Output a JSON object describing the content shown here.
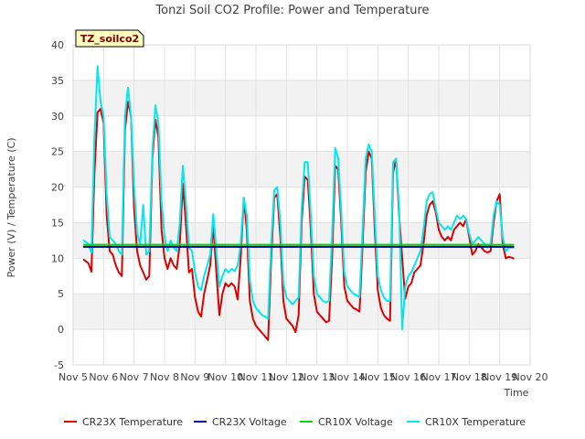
{
  "chart_data": {
    "type": "line",
    "title": "Tonzi Soil CO2 Profile: Power and Temperature",
    "xlabel": "Time",
    "ylabel": "Power (V) / Temperature (C)",
    "badge": "TZ_soilco2",
    "xlim": [
      5,
      20
    ],
    "ylim": [
      -5,
      40
    ],
    "xticks": [
      5,
      6,
      7,
      8,
      9,
      10,
      11,
      12,
      13,
      14,
      15,
      16,
      17,
      18,
      19,
      20
    ],
    "xtick_labels": [
      "Nov 5",
      "Nov 6",
      "Nov 7",
      "Nov 8",
      "Nov 9",
      "Nov 10",
      "Nov 11",
      "Nov 12",
      "Nov 13",
      "Nov 14",
      "Nov 15",
      "Nov 16",
      "Nov 17",
      "Nov 18",
      "Nov 19",
      "Nov 20"
    ],
    "yticks": [
      -5,
      0,
      5,
      10,
      15,
      20,
      25,
      30,
      35,
      40
    ],
    "ytick_labels": [
      "-5",
      "0",
      "5",
      "10",
      "15",
      "20",
      "25",
      "30",
      "35",
      "40"
    ],
    "grid": true,
    "legend_position": "bottom",
    "series": [
      {
        "name": "CR23X Temperature",
        "color": "#dd0000",
        "x": [
          5.35,
          5.5,
          5.6,
          5.7,
          5.8,
          5.9,
          6.0,
          6.1,
          6.2,
          6.3,
          6.4,
          6.5,
          6.6,
          6.7,
          6.8,
          6.9,
          7.0,
          7.1,
          7.2,
          7.3,
          7.4,
          7.5,
          7.6,
          7.7,
          7.8,
          7.9,
          8.0,
          8.1,
          8.2,
          8.3,
          8.4,
          8.5,
          8.6,
          8.7,
          8.8,
          8.9,
          9.0,
          9.1,
          9.2,
          9.3,
          9.4,
          9.5,
          9.6,
          9.7,
          9.8,
          9.9,
          10.0,
          10.1,
          10.2,
          10.3,
          10.4,
          10.5,
          10.6,
          10.7,
          10.8,
          10.9,
          11.0,
          11.1,
          11.2,
          11.3,
          11.4,
          11.5,
          11.6,
          11.7,
          11.8,
          11.9,
          12.0,
          12.1,
          12.2,
          12.3,
          12.4,
          12.5,
          12.6,
          12.7,
          12.8,
          12.9,
          13.0,
          13.1,
          13.2,
          13.3,
          13.4,
          13.5,
          13.6,
          13.7,
          13.8,
          13.9,
          14.0,
          14.1,
          14.2,
          14.3,
          14.4,
          14.5,
          14.6,
          14.7,
          14.8,
          14.9,
          15.0,
          15.1,
          15.2,
          15.3,
          15.4,
          15.5,
          15.6,
          15.7,
          15.8,
          15.9,
          16.0,
          16.1,
          16.2,
          16.3,
          16.4,
          16.5,
          16.6,
          16.7,
          16.8,
          16.9,
          17.0,
          17.1,
          17.2,
          17.3,
          17.4,
          17.5,
          17.6,
          17.7,
          17.8,
          17.9,
          18.0,
          18.1,
          18.2,
          18.3,
          18.4,
          18.5,
          18.6,
          18.7,
          18.8,
          18.9,
          19.0,
          19.1,
          19.2,
          19.3,
          19.45
        ],
        "y": [
          9.8,
          9.3,
          8.1,
          22.0,
          30.5,
          31.0,
          29.0,
          16.0,
          11.0,
          10.5,
          9.0,
          8.0,
          7.5,
          28.0,
          32.0,
          30.0,
          17.0,
          11.0,
          9.0,
          8.0,
          7.0,
          7.5,
          24.0,
          29.5,
          27.0,
          14.0,
          10.0,
          8.5,
          10.0,
          9.0,
          8.5,
          12.0,
          20.5,
          15.0,
          8.0,
          8.5,
          4.5,
          2.5,
          1.8,
          5.0,
          7.0,
          9.0,
          14.8,
          8.0,
          2.0,
          5.0,
          6.5,
          6.0,
          6.5,
          6.0,
          4.2,
          10.0,
          18.5,
          14.0,
          4.0,
          1.5,
          0.5,
          0.0,
          -0.5,
          -1.0,
          -1.5,
          10.0,
          18.5,
          19.0,
          13.0,
          4.0,
          1.5,
          1.0,
          0.5,
          -0.4,
          2.0,
          15.0,
          21.5,
          21.0,
          14.0,
          5.0,
          2.5,
          2.0,
          1.5,
          1.0,
          1.2,
          10.0,
          23.0,
          22.5,
          15.0,
          6.0,
          4.0,
          3.5,
          3.0,
          2.8,
          2.5,
          12.0,
          22.0,
          25.0,
          24.0,
          14.0,
          5.5,
          3.0,
          2.0,
          1.5,
          1.2,
          22.0,
          24.0,
          16.0,
          10.0,
          4.3,
          6.0,
          6.5,
          8.0,
          8.5,
          9.0,
          12.0,
          16.0,
          17.5,
          18.0,
          16.5,
          14.0,
          13.0,
          12.5,
          13.0,
          12.5,
          14.0,
          14.5,
          15.0,
          14.5,
          15.5,
          13.0,
          10.5,
          11.0,
          12.0,
          11.5,
          11.0,
          10.8,
          11.0,
          15.0,
          18.0,
          19.0,
          12.0,
          10.0,
          10.2,
          10.0
        ]
      },
      {
        "name": "CR23X Voltage",
        "color": "#00009e",
        "x": [
          5.35,
          19.45
        ],
        "y": [
          11.6,
          11.6
        ]
      },
      {
        "name": "CR10X Voltage",
        "color": "#00d800",
        "x": [
          5.35,
          19.45
        ],
        "y": [
          11.9,
          11.9
        ]
      },
      {
        "name": "CR10X Temperature",
        "color": "#00e8f0",
        "x": [
          5.35,
          5.5,
          5.6,
          5.7,
          5.8,
          5.9,
          6.0,
          6.1,
          6.2,
          6.3,
          6.4,
          6.5,
          6.6,
          6.7,
          6.8,
          6.9,
          7.0,
          7.1,
          7.2,
          7.3,
          7.4,
          7.5,
          7.6,
          7.7,
          7.8,
          7.9,
          8.0,
          8.1,
          8.2,
          8.3,
          8.4,
          8.5,
          8.6,
          8.7,
          8.8,
          8.9,
          9.0,
          9.1,
          9.2,
          9.3,
          9.4,
          9.5,
          9.6,
          9.7,
          9.8,
          9.9,
          10.0,
          10.1,
          10.2,
          10.3,
          10.4,
          10.5,
          10.6,
          10.7,
          10.8,
          10.9,
          11.0,
          11.1,
          11.2,
          11.3,
          11.4,
          11.5,
          11.6,
          11.7,
          11.8,
          11.9,
          12.0,
          12.1,
          12.2,
          12.3,
          12.4,
          12.5,
          12.6,
          12.7,
          12.8,
          12.9,
          13.0,
          13.1,
          13.2,
          13.3,
          13.4,
          13.5,
          13.6,
          13.7,
          13.8,
          13.9,
          14.0,
          14.1,
          14.2,
          14.3,
          14.4,
          14.5,
          14.6,
          14.7,
          14.8,
          14.9,
          15.0,
          15.1,
          15.2,
          15.3,
          15.4,
          15.5,
          15.6,
          15.7,
          15.8,
          15.9,
          16.0,
          16.1,
          16.2,
          16.3,
          16.4,
          16.5,
          16.6,
          16.7,
          16.8,
          16.9,
          17.0,
          17.1,
          17.2,
          17.3,
          17.4,
          17.5,
          17.6,
          17.7,
          17.8,
          17.9,
          18.0,
          18.1,
          18.2,
          18.3,
          18.4,
          18.5,
          18.6,
          18.7,
          18.8,
          18.9,
          19.0,
          19.1,
          19.2,
          19.3,
          19.45
        ],
        "y": [
          12.5,
          12.0,
          10.8,
          27.0,
          37.0,
          32.0,
          30.0,
          19.0,
          13.0,
          12.5,
          12.0,
          11.0,
          10.5,
          30.0,
          34.0,
          30.0,
          20.0,
          13.5,
          12.0,
          17.5,
          10.5,
          11.0,
          25.0,
          31.5,
          29.0,
          18.0,
          13.0,
          11.0,
          12.5,
          11.5,
          11.0,
          15.0,
          23.0,
          18.0,
          11.5,
          11.0,
          8.0,
          6.0,
          5.5,
          7.5,
          9.0,
          10.5,
          16.2,
          11.0,
          6.0,
          7.5,
          8.5,
          8.0,
          8.5,
          8.2,
          9.0,
          12.0,
          18.5,
          16.0,
          7.0,
          4.0,
          3.0,
          2.5,
          2.0,
          1.8,
          1.5,
          12.0,
          19.5,
          20.0,
          15.0,
          6.5,
          4.5,
          4.0,
          3.5,
          4.0,
          4.5,
          17.0,
          23.5,
          23.5,
          16.0,
          7.5,
          5.0,
          4.5,
          4.0,
          3.8,
          4.0,
          13.0,
          25.5,
          24.0,
          16.5,
          8.0,
          6.0,
          5.5,
          5.0,
          4.8,
          4.5,
          14.0,
          24.0,
          26.0,
          25.0,
          16.0,
          7.5,
          5.5,
          4.5,
          4.0,
          4.0,
          23.5,
          24.0,
          17.0,
          0.0,
          6.0,
          7.5,
          8.0,
          9.0,
          10.0,
          11.0,
          14.0,
          18.0,
          19.0,
          19.3,
          17.0,
          15.0,
          14.5,
          14.0,
          14.5,
          14.0,
          15.0,
          16.0,
          15.5,
          16.0,
          15.5,
          13.5,
          12.0,
          12.5,
          13.0,
          12.5,
          12.0,
          11.5,
          12.0,
          16.0,
          18.0,
          17.5,
          13.0,
          11.0,
          11.5,
          11.5
        ]
      }
    ]
  }
}
